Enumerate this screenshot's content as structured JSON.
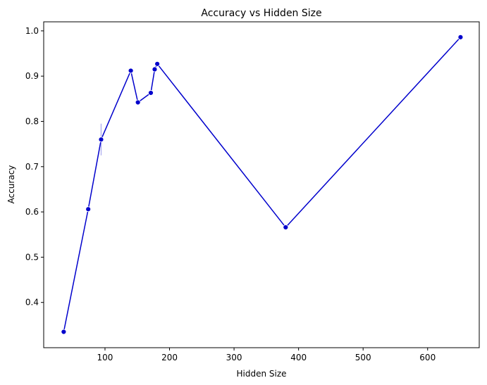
{
  "chart_data": {
    "type": "line",
    "title": "Accuracy vs Hidden Size",
    "xlabel": "Hidden Size",
    "ylabel": "Accuracy",
    "xlim": [
      5,
      680
    ],
    "ylim": [
      0.3,
      1.02
    ],
    "xticks": [
      100,
      200,
      300,
      400,
      500,
      600
    ],
    "xtick_labels": [
      "100",
      "200",
      "300",
      "400",
      "500",
      "600"
    ],
    "yticks": [
      0.4,
      0.5,
      0.6,
      0.7,
      0.8,
      0.9,
      1.0
    ],
    "ytick_labels": [
      "0.4",
      "0.5",
      "0.6",
      "0.7",
      "0.8",
      "0.9",
      "1.0"
    ],
    "grid": false,
    "colors": {
      "line": "#0000cc",
      "marker": "#0000cc",
      "band": "#b3b3f0"
    },
    "series": [
      {
        "name": "Accuracy",
        "x": [
          36,
          74,
          94,
          140,
          151,
          171,
          177,
          181,
          380,
          651
        ],
        "y": [
          0.335,
          0.606,
          0.76,
          0.912,
          0.842,
          0.863,
          0.915,
          0.927,
          0.566,
          0.986
        ]
      }
    ],
    "ci_band": {
      "x": 94,
      "low": 0.725,
      "high": 0.795
    }
  }
}
